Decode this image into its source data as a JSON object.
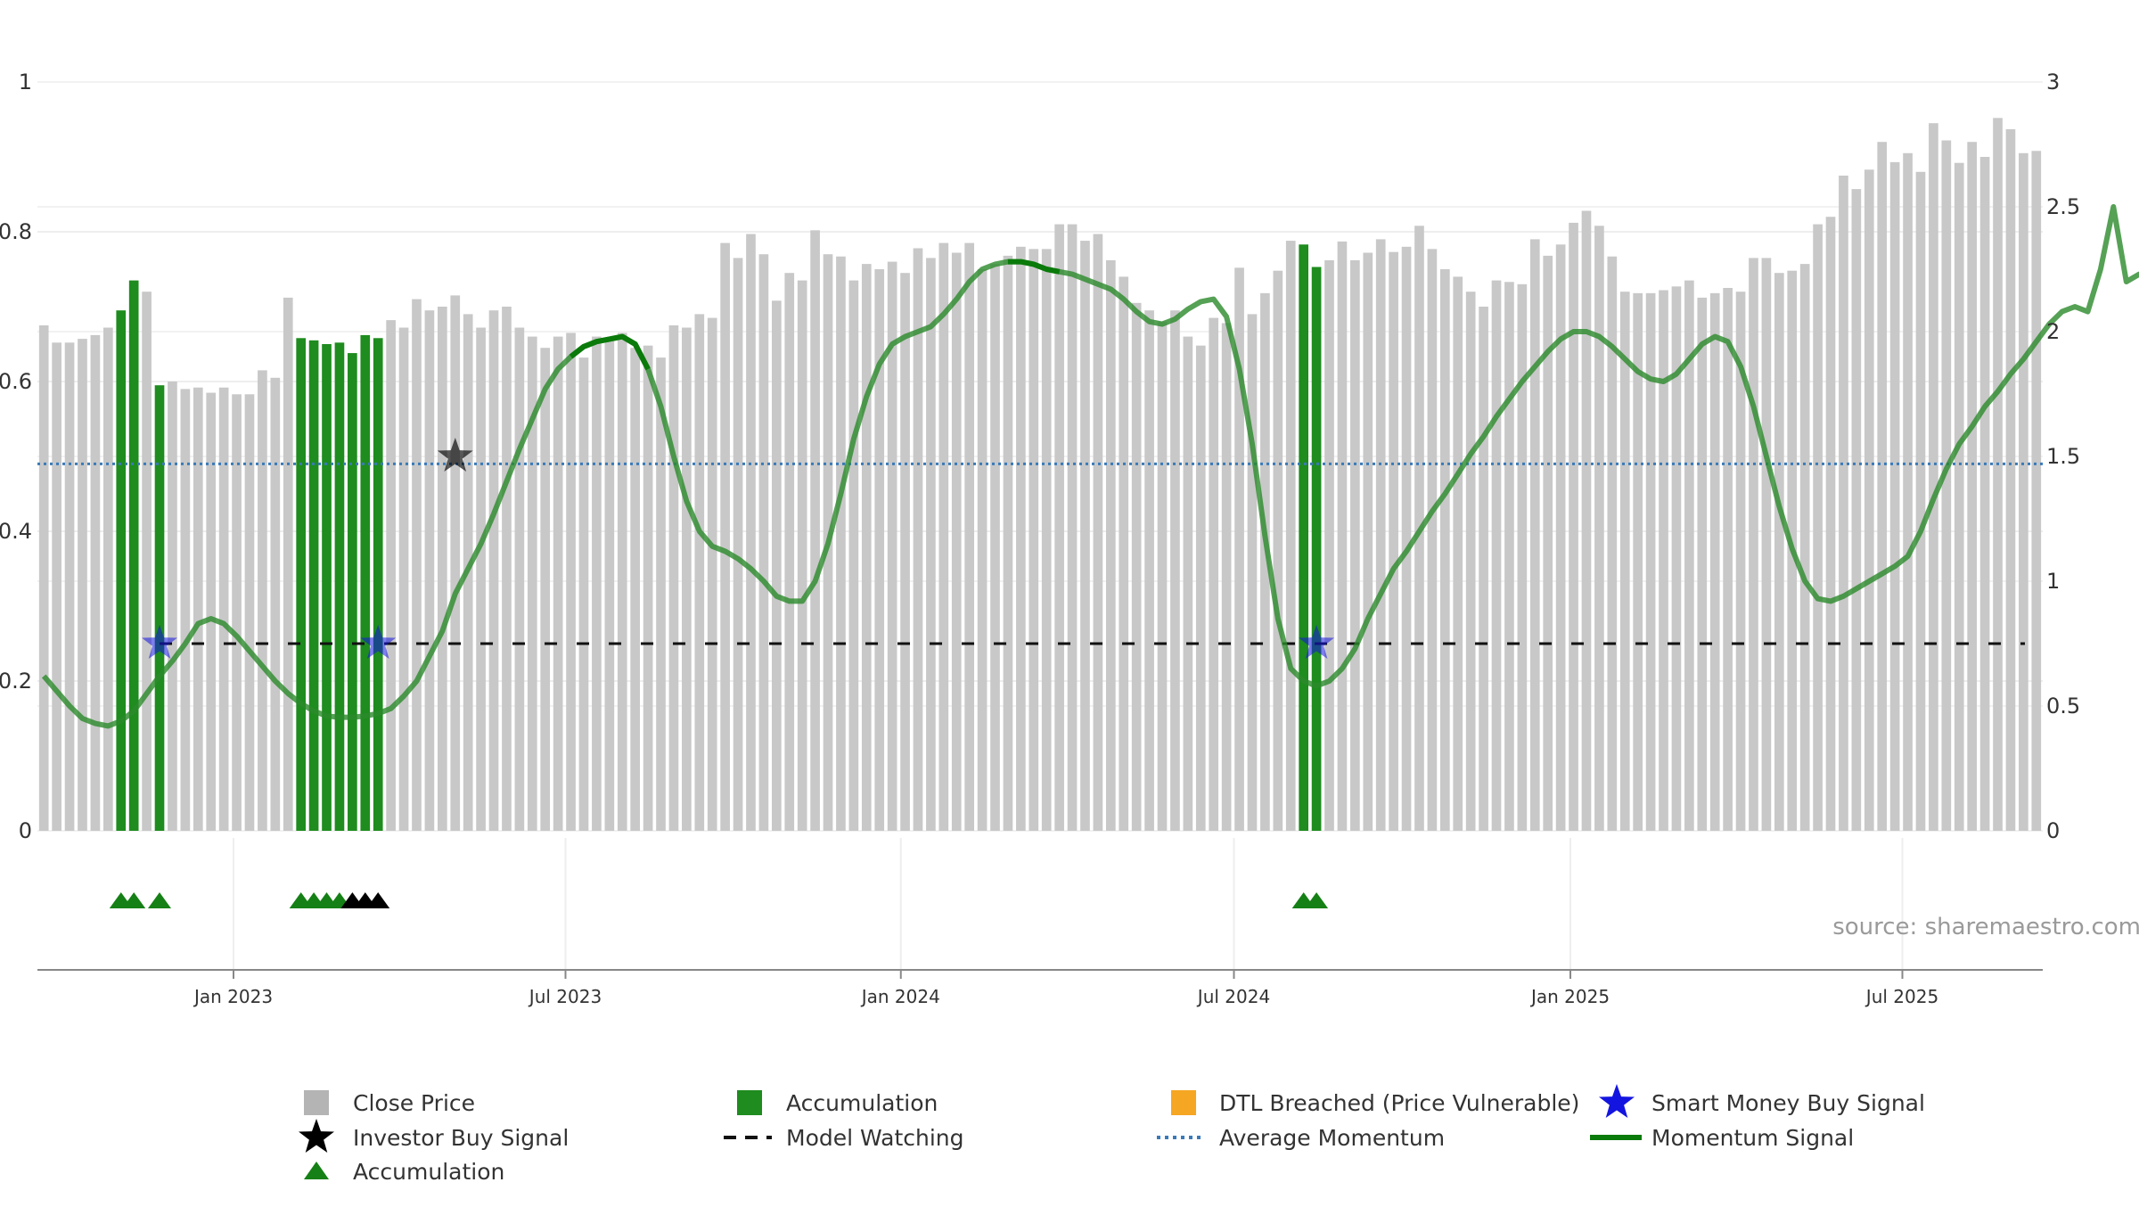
{
  "chart_data": {
    "type": "bar",
    "title": "",
    "source": "source: sharemaestro.com",
    "x_ticks": [
      "Jan 2023",
      "Jul 2023",
      "Jan 2024",
      "Jul 2024",
      "Jan 2025",
      "Jul 2025"
    ],
    "x_range_weeks": [
      0,
      180
    ],
    "x_tick_weeks": [
      17.6,
      47.4,
      77.5,
      107.4,
      137.6,
      167.4
    ],
    "y_left": {
      "ylim": [
        0,
        1
      ],
      "ticks": [
        "0",
        "0.2",
        "0.4",
        "0.6",
        "0.8",
        "1"
      ],
      "tick_values": [
        0,
        0.2,
        0.4,
        0.6,
        0.8,
        1
      ]
    },
    "y_right": {
      "ylim": [
        0,
        3
      ],
      "ticks": [
        "0",
        "0.5",
        "1",
        "1.5",
        "2",
        "2.5",
        "3"
      ],
      "tick_values": [
        0,
        0.5,
        1,
        1.5,
        2,
        2.5,
        3
      ]
    },
    "close_price": [
      0.675,
      0.652,
      0.652,
      0.657,
      0.662,
      0.672,
      0.695,
      0.735,
      0.72,
      0.595,
      0.6,
      0.59,
      0.592,
      0.585,
      0.592,
      0.583,
      0.583,
      0.615,
      0.605,
      0.712,
      0.658,
      0.655,
      0.65,
      0.652,
      0.638,
      0.662,
      0.658,
      0.682,
      0.672,
      0.71,
      0.695,
      0.7,
      0.715,
      0.69,
      0.672,
      0.695,
      0.7,
      0.672,
      0.66,
      0.645,
      0.66,
      0.665,
      0.632,
      0.66,
      0.658,
      0.665,
      0.645,
      0.648,
      0.632,
      0.675,
      0.672,
      0.69,
      0.685,
      0.785,
      0.765,
      0.797,
      0.77,
      0.708,
      0.745,
      0.735,
      0.802,
      0.77,
      0.767,
      0.735,
      0.757,
      0.75,
      0.76,
      0.745,
      0.778,
      0.765,
      0.785,
      0.772,
      0.785,
      0.75,
      0.757,
      0.768,
      0.78,
      0.777,
      0.777,
      0.81,
      0.81,
      0.788,
      0.797,
      0.762,
      0.74,
      0.705,
      0.695,
      0.68,
      0.695,
      0.66,
      0.648,
      0.685,
      0.678,
      0.752,
      0.69,
      0.718,
      0.748,
      0.788,
      0.783,
      0.753,
      0.762,
      0.787,
      0.762,
      0.772,
      0.79,
      0.773,
      0.78,
      0.808,
      0.777,
      0.75,
      0.74,
      0.72,
      0.7,
      0.735,
      0.733,
      0.73,
      0.79,
      0.768,
      0.783,
      0.812,
      0.828,
      0.808,
      0.767,
      0.72,
      0.718,
      0.718,
      0.722,
      0.727,
      0.735,
      0.712,
      0.718,
      0.725,
      0.72,
      0.765,
      0.765,
      0.745,
      0.748,
      0.757,
      0.81,
      0.82,
      0.875,
      0.857,
      0.883,
      0.92,
      0.893,
      0.905,
      0.88,
      0.945,
      0.922,
      0.892,
      0.92,
      0.9,
      0.952,
      0.937,
      0.905,
      0.908
    ],
    "accumulation_bar_indices": [
      6,
      7,
      9,
      20,
      21,
      22,
      23,
      24,
      25,
      26,
      98,
      99
    ],
    "momentum_signal": [
      0.62,
      0.56,
      0.5,
      0.45,
      0.43,
      0.42,
      0.44,
      0.48,
      0.55,
      0.62,
      0.68,
      0.75,
      0.83,
      0.85,
      0.83,
      0.78,
      0.72,
      0.66,
      0.6,
      0.55,
      0.51,
      0.48,
      0.46,
      0.455,
      0.455,
      0.46,
      0.47,
      0.49,
      0.54,
      0.6,
      0.7,
      0.8,
      0.95,
      1.05,
      1.15,
      1.27,
      1.4,
      1.53,
      1.65,
      1.77,
      1.85,
      1.9,
      1.94,
      1.96,
      1.97,
      1.98,
      1.95,
      1.85,
      1.7,
      1.5,
      1.32,
      1.2,
      1.14,
      1.12,
      1.09,
      1.05,
      1.0,
      0.94,
      0.92,
      0.92,
      1.0,
      1.15,
      1.35,
      1.57,
      1.74,
      1.87,
      1.95,
      1.98,
      2.0,
      2.02,
      2.07,
      2.13,
      2.2,
      2.25,
      2.27,
      2.28,
      2.28,
      2.27,
      2.25,
      2.24,
      2.23,
      2.21,
      2.19,
      2.17,
      2.13,
      2.08,
      2.04,
      2.03,
      2.05,
      2.09,
      2.12,
      2.13,
      2.06,
      1.85,
      1.55,
      1.18,
      0.85,
      0.65,
      0.6,
      0.58,
      0.6,
      0.65,
      0.73,
      0.85,
      0.95,
      1.05,
      1.12,
      1.2,
      1.28,
      1.35,
      1.43,
      1.51,
      1.58,
      1.66,
      1.73,
      1.8,
      1.86,
      1.92,
      1.97,
      2.0,
      2.0,
      1.98,
      1.94,
      1.89,
      1.84,
      1.81,
      1.8,
      1.83,
      1.89,
      1.95,
      1.98,
      1.96,
      1.86,
      1.7,
      1.5,
      1.3,
      1.13,
      1.0,
      0.93,
      0.92,
      0.94,
      0.97,
      1.0,
      1.03,
      1.06,
      1.1,
      1.2,
      1.33,
      1.45,
      1.55,
      1.62,
      1.7,
      1.76,
      1.83,
      1.89,
      1.96,
      2.03,
      2.08,
      2.1,
      2.08,
      2.25,
      2.5,
      2.2,
      2.23,
      2.22
    ],
    "momentum_bright_segments": [
      [
        41,
        47
      ],
      [
        75,
        79
      ]
    ],
    "average_momentum": 1.47,
    "model_watching_level": 0.25,
    "smart_money_buy_signals": [
      {
        "bar": 9,
        "y": 0.25
      },
      {
        "bar": 26,
        "y": 0.25
      },
      {
        "bar": 99,
        "y": 0.25
      }
    ],
    "investor_buy_signals": [
      {
        "bar": 32,
        "y": 0.5
      }
    ],
    "accumulation_markers": {
      "green_weeks": [
        6,
        7,
        9,
        20,
        21,
        22,
        23,
        98,
        99
      ],
      "black_weeks": [
        24,
        25,
        26
      ]
    }
  },
  "legend": {
    "close_price": "Close Price",
    "accumulation_bar": "Accumulation",
    "dtl_breached": "DTL Breached (Price Vulnerable)",
    "smart_money": "Smart Money Buy Signal",
    "investor_buy": "Investor Buy Signal",
    "model_watching": "Model Watching",
    "average_momentum": "Average Momentum",
    "momentum_signal": "Momentum Signal",
    "accumulation_marker": "Accumulation"
  },
  "colors": {
    "close_price": "#c8c8c8",
    "accumulation": "#1e8c1e",
    "dtl": "#f5a623",
    "smart_money": "#1414e0",
    "investor": "#000000",
    "average_momentum": "#3a7ab8",
    "momentum": "#2a8a2a",
    "momentum_bright": "#0a7a0a",
    "marker_green": "#158015"
  }
}
